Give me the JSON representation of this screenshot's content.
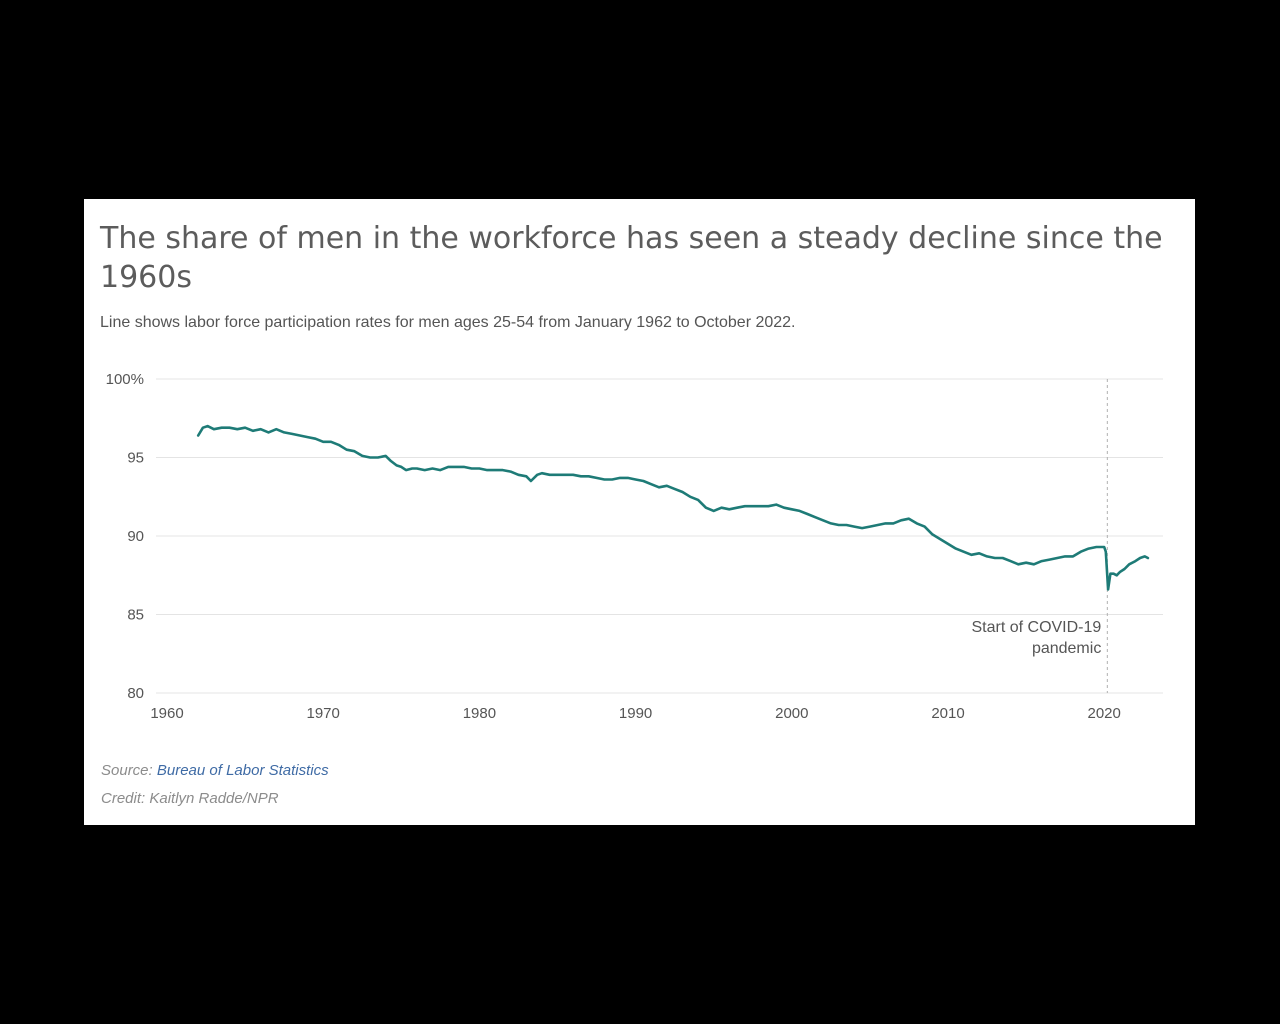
{
  "title": "The share of men in the workforce has seen a steady decline since the 1960s",
  "subtitle": "Line shows labor force participation rates for men ages 25-54 from January 1962 to October 2022.",
  "footer": {
    "source_label": "Source:",
    "source_link": "Bureau of Labor Statistics",
    "credit": "Credit: Kaitlyn Radde/NPR"
  },
  "colors": {
    "line": "#1e7b77",
    "grid": "#e4e4e4",
    "annotation_line": "#b0b0b0"
  },
  "chart_data": {
    "type": "line",
    "title": "The share of men in the workforce has seen a steady decline since the 1960s",
    "xlabel": "",
    "ylabel": "",
    "xlim": [
      1960,
      2023.7
    ],
    "ylim": [
      80,
      100
    ],
    "y_ticks": [
      {
        "value": 100,
        "label": "100%"
      },
      {
        "value": 95,
        "label": "95"
      },
      {
        "value": 90,
        "label": "90"
      },
      {
        "value": 85,
        "label": "85"
      },
      {
        "value": 80,
        "label": "80"
      }
    ],
    "x_ticks": [
      {
        "value": 1960,
        "label": "1960"
      },
      {
        "value": 1970,
        "label": "1970"
      },
      {
        "value": 1980,
        "label": "1980"
      },
      {
        "value": 1990,
        "label": "1990"
      },
      {
        "value": 2000,
        "label": "2000"
      },
      {
        "value": 2010,
        "label": "2010"
      },
      {
        "value": 2020,
        "label": "2020"
      }
    ],
    "grid": true,
    "series": [
      {
        "name": "Labor force participation rate, men ages 25-54",
        "x": [
          1962.0,
          1962.3,
          1962.6,
          1963.0,
          1963.5,
          1964.0,
          1964.5,
          1965.0,
          1965.5,
          1966.0,
          1966.5,
          1967.0,
          1967.5,
          1968.0,
          1968.5,
          1969.0,
          1969.5,
          1970.0,
          1970.5,
          1971.0,
          1971.5,
          1972.0,
          1972.5,
          1973.0,
          1973.5,
          1974.0,
          1974.3,
          1974.7,
          1975.0,
          1975.3,
          1975.7,
          1976.0,
          1976.5,
          1977.0,
          1977.5,
          1978.0,
          1978.5,
          1979.0,
          1979.5,
          1980.0,
          1980.5,
          1981.0,
          1981.5,
          1982.0,
          1982.5,
          1983.0,
          1983.3,
          1983.7,
          1984.0,
          1984.5,
          1985.0,
          1985.5,
          1986.0,
          1986.5,
          1987.0,
          1987.5,
          1988.0,
          1988.5,
          1989.0,
          1989.5,
          1990.0,
          1990.5,
          1991.0,
          1991.5,
          1992.0,
          1992.5,
          1993.0,
          1993.5,
          1994.0,
          1994.5,
          1995.0,
          1995.5,
          1996.0,
          1996.5,
          1997.0,
          1997.5,
          1998.0,
          1998.5,
          1999.0,
          1999.5,
          2000.0,
          2000.5,
          2001.0,
          2001.5,
          2002.0,
          2002.5,
          2003.0,
          2003.5,
          2004.0,
          2004.5,
          2005.0,
          2005.5,
          2006.0,
          2006.5,
          2007.0,
          2007.5,
          2008.0,
          2008.5,
          2009.0,
          2009.5,
          2010.0,
          2010.5,
          2011.0,
          2011.5,
          2012.0,
          2012.5,
          2013.0,
          2013.5,
          2014.0,
          2014.5,
          2015.0,
          2015.5,
          2016.0,
          2016.5,
          2017.0,
          2017.5,
          2018.0,
          2018.5,
          2019.0,
          2019.5,
          2020.0,
          2020.1,
          2020.25,
          2020.4,
          2020.6,
          2020.8,
          2021.0,
          2021.3,
          2021.6,
          2022.0,
          2022.3,
          2022.6,
          2022.8
        ],
        "values": [
          96.4,
          96.9,
          97.0,
          96.8,
          96.9,
          96.9,
          96.8,
          96.9,
          96.7,
          96.8,
          96.6,
          96.8,
          96.6,
          96.5,
          96.4,
          96.3,
          96.2,
          96.0,
          96.0,
          95.8,
          95.5,
          95.4,
          95.1,
          95.0,
          95.0,
          95.1,
          94.8,
          94.5,
          94.4,
          94.2,
          94.3,
          94.3,
          94.2,
          94.3,
          94.2,
          94.4,
          94.4,
          94.4,
          94.3,
          94.3,
          94.2,
          94.2,
          94.2,
          94.1,
          93.9,
          93.8,
          93.5,
          93.9,
          94.0,
          93.9,
          93.9,
          93.9,
          93.9,
          93.8,
          93.8,
          93.7,
          93.6,
          93.6,
          93.7,
          93.7,
          93.6,
          93.5,
          93.3,
          93.1,
          93.2,
          93.0,
          92.8,
          92.5,
          92.3,
          91.8,
          91.6,
          91.8,
          91.7,
          91.8,
          91.9,
          91.9,
          91.9,
          91.9,
          92.0,
          91.8,
          91.7,
          91.6,
          91.4,
          91.2,
          91.0,
          90.8,
          90.7,
          90.7,
          90.6,
          90.5,
          90.6,
          90.7,
          90.8,
          90.8,
          91.0,
          91.1,
          90.8,
          90.6,
          90.1,
          89.8,
          89.5,
          89.2,
          89.0,
          88.8,
          88.9,
          88.7,
          88.6,
          88.6,
          88.4,
          88.2,
          88.3,
          88.2,
          88.4,
          88.5,
          88.6,
          88.7,
          88.7,
          89.0,
          89.2,
          89.3,
          89.3,
          89.0,
          86.6,
          87.6,
          87.6,
          87.5,
          87.7,
          87.9,
          88.2,
          88.4,
          88.6,
          88.7,
          88.6
        ]
      }
    ],
    "annotations": [
      {
        "x": 2020.2,
        "text_lines": [
          "Start of COVID-19",
          "pandemic"
        ]
      }
    ]
  }
}
